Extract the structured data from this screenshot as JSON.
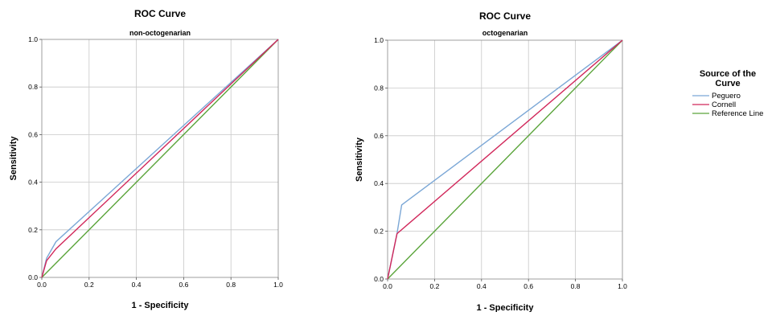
{
  "chart_data": [
    {
      "type": "line",
      "title": "ROC Curve",
      "subtitle": "non-octogenarian",
      "xlabel": "1 - Specificity",
      "ylabel": "Sensitivity",
      "xlim": [
        0,
        1
      ],
      "ylim": [
        0,
        1
      ],
      "xticks": [
        "0.0",
        "0.2",
        "0.4",
        "0.6",
        "0.8",
        "1.0"
      ],
      "yticks": [
        "0.0",
        "0.2",
        "0.4",
        "0.6",
        "0.8",
        "1.0"
      ],
      "grid": true,
      "series": [
        {
          "name": "Peguero",
          "color": "#7ba7d6",
          "x": [
            0,
            0.02,
            0.06,
            1
          ],
          "y": [
            0,
            0.08,
            0.15,
            1
          ]
        },
        {
          "name": "Cornell",
          "color": "#d1285b",
          "x": [
            0,
            0.02,
            0.06,
            1
          ],
          "y": [
            0,
            0.07,
            0.12,
            1
          ]
        },
        {
          "name": "Reference Line",
          "color": "#5aa43a",
          "x": [
            0,
            1
          ],
          "y": [
            0,
            1
          ]
        }
      ]
    },
    {
      "type": "line",
      "title": "ROC Curve",
      "subtitle": "octogenarian",
      "xlabel": "1 - Specificity",
      "ylabel": "Sensitivity",
      "xlim": [
        0,
        1
      ],
      "ylim": [
        0,
        1
      ],
      "xticks": [
        "0.0",
        "0.2",
        "0.4",
        "0.6",
        "0.8",
        "1.0"
      ],
      "yticks": [
        "0.0",
        "0.2",
        "0.4",
        "0.6",
        "0.8",
        "1.0"
      ],
      "grid": true,
      "series": [
        {
          "name": "Peguero",
          "color": "#7ba7d6",
          "x": [
            0,
            0.04,
            0.06,
            1
          ],
          "y": [
            0,
            0.19,
            0.31,
            1
          ]
        },
        {
          "name": "Cornell",
          "color": "#d1285b",
          "x": [
            0,
            0.04,
            1
          ],
          "y": [
            0,
            0.19,
            1
          ]
        },
        {
          "name": "Reference Line",
          "color": "#5aa43a",
          "x": [
            0,
            1
          ],
          "y": [
            0,
            1
          ]
        }
      ]
    }
  ],
  "legend": {
    "title_line1": "Source of the",
    "title_line2": "Curve",
    "items": [
      {
        "label": "Peguero",
        "color": "#7ba7d6"
      },
      {
        "label": "Cornell",
        "color": "#d1285b"
      },
      {
        "label": "Reference Line",
        "color": "#5aa43a"
      }
    ]
  }
}
